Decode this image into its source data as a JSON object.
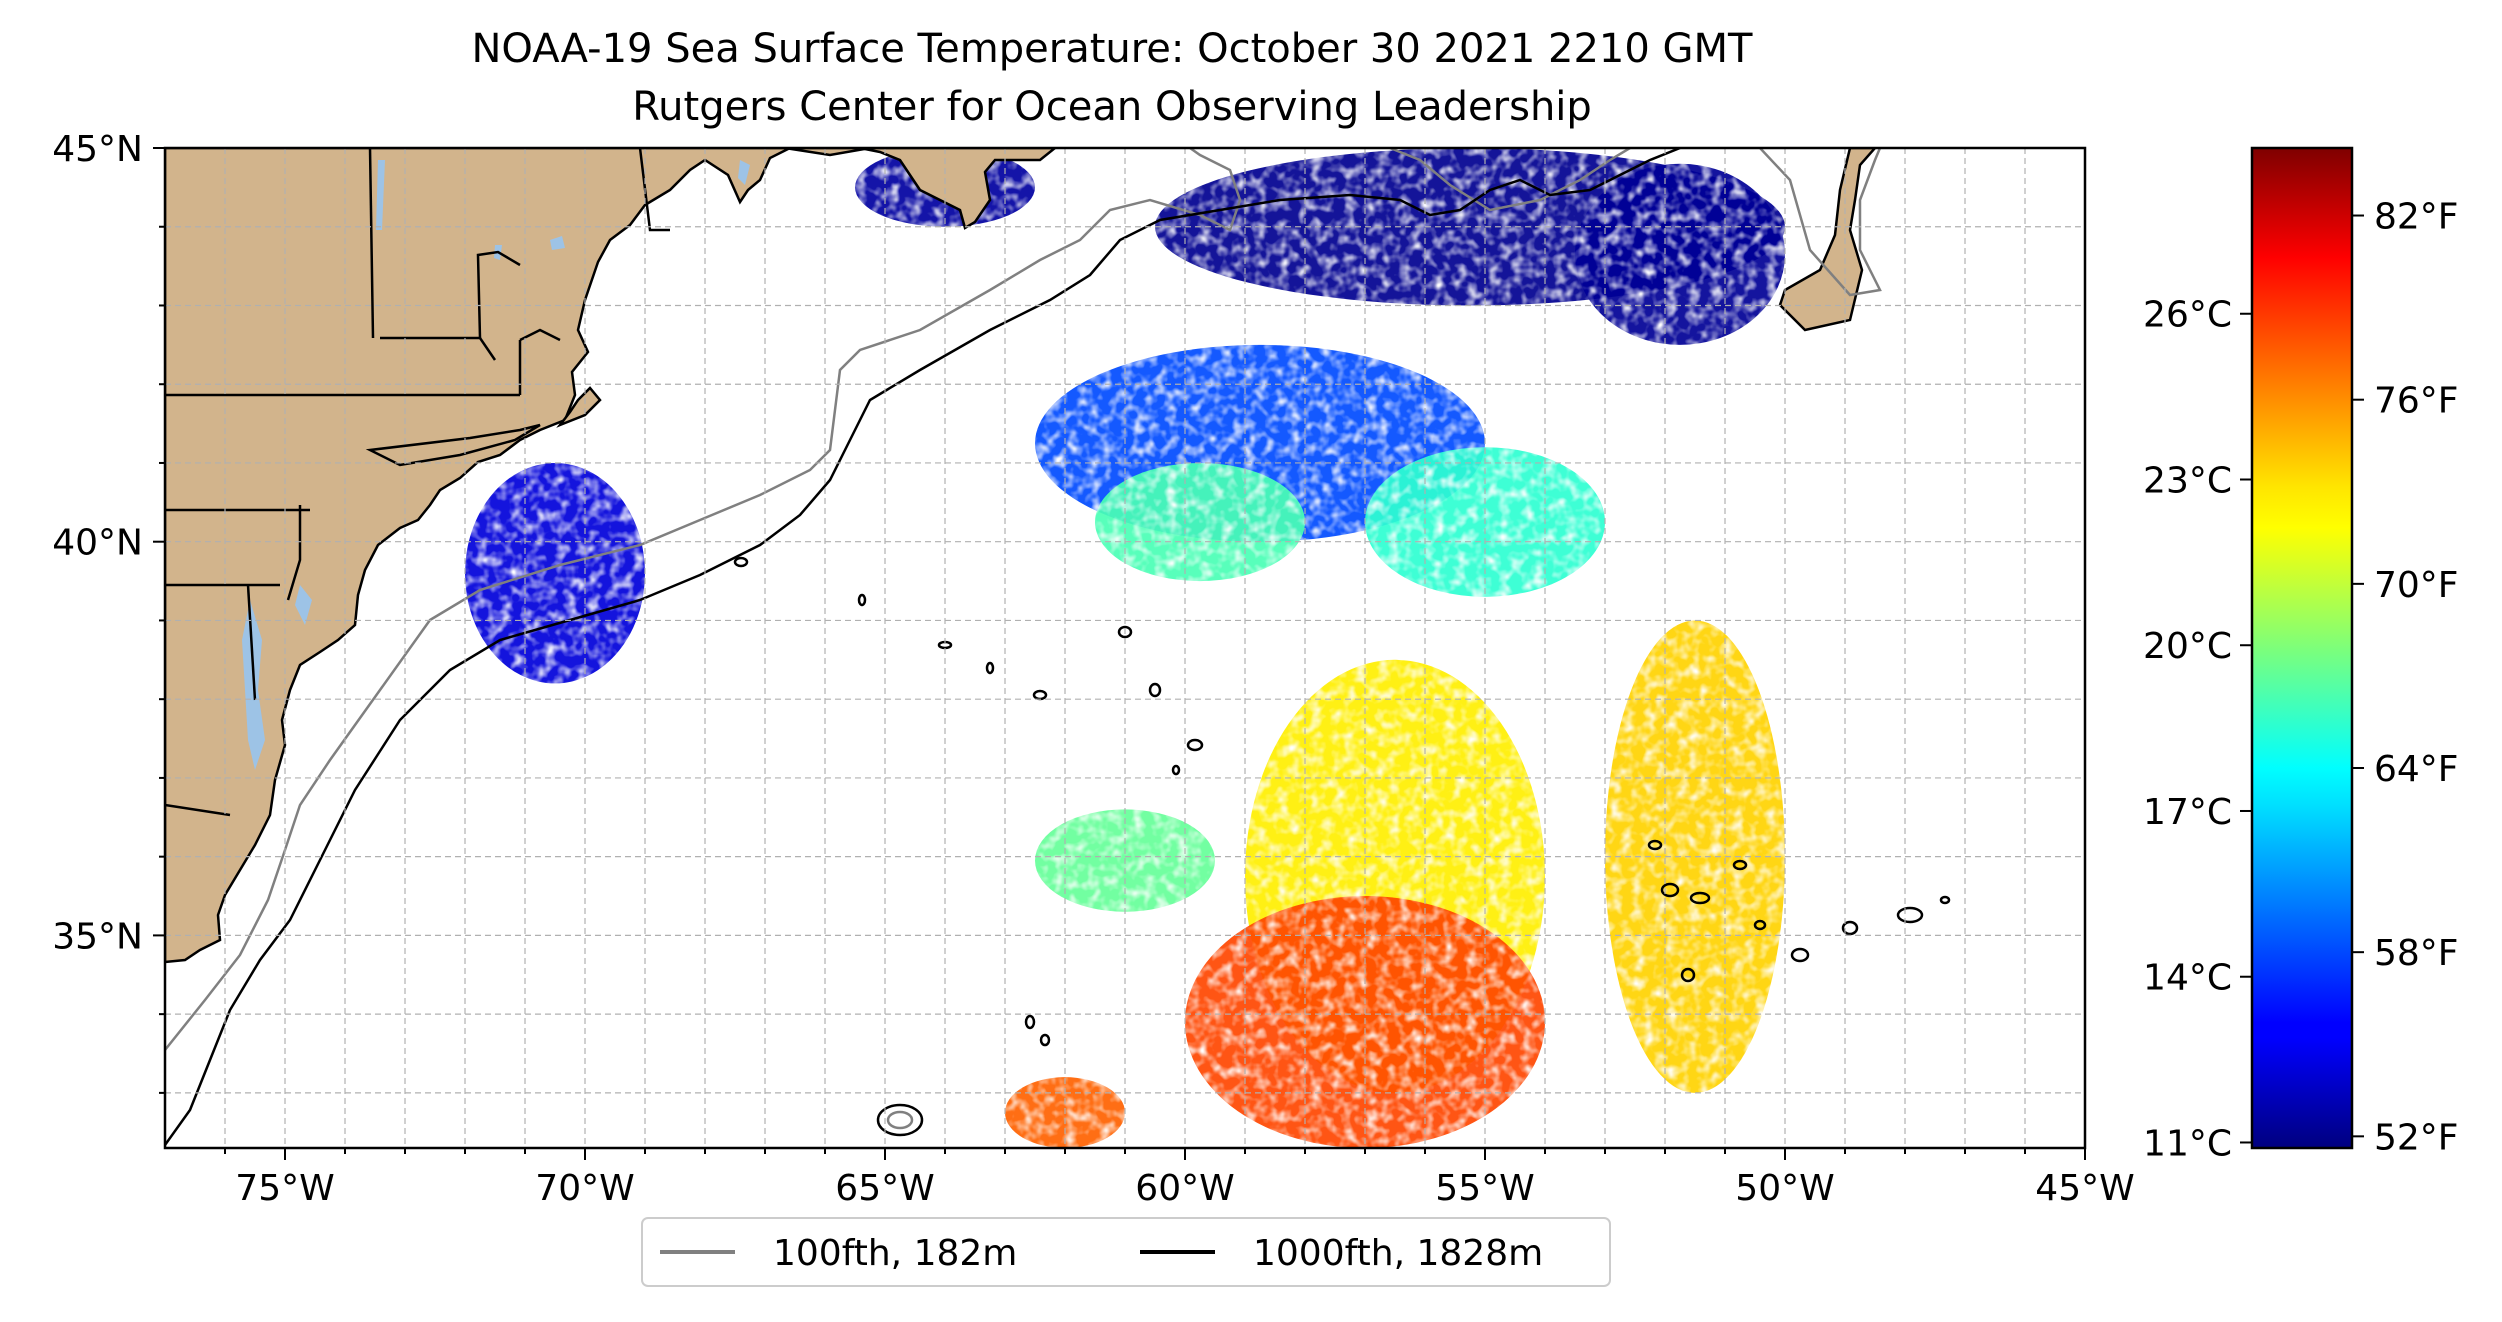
{
  "title": {
    "line1": "NOAA-19 Sea Surface Temperature: October 30 2021 2210 GMT",
    "line2": "Rutgers Center for Ocean Observing Leadership"
  },
  "map": {
    "lon_range": [
      -77,
      -45
    ],
    "lat_range": [
      32.3,
      45
    ],
    "x_ticks": [
      {
        "value": -75,
        "label": "75°W"
      },
      {
        "value": -70,
        "label": "70°W"
      },
      {
        "value": -65,
        "label": "65°W"
      },
      {
        "value": -60,
        "label": "60°W"
      },
      {
        "value": -55,
        "label": "55°W"
      },
      {
        "value": -50,
        "label": "50°W"
      },
      {
        "value": -45,
        "label": "45°W"
      }
    ],
    "y_ticks": [
      {
        "value": 45,
        "label": "45°N"
      },
      {
        "value": 40,
        "label": "40°N"
      },
      {
        "value": 35,
        "label": "35°N"
      }
    ],
    "gridlines": true,
    "colors": {
      "land": "#d2b48c",
      "lakes": "#9dc3e6",
      "ocean": "#ffffff",
      "border": "#000000",
      "grid": "#b0b0b0",
      "isobath_100fth": "#808080",
      "isobath_1000fth": "#000000"
    }
  },
  "legend": {
    "placement": "bottom-center",
    "items": [
      {
        "label": "100fth, 182m",
        "color": "#808080"
      },
      {
        "label": "1000fth, 1828m",
        "color": "#000000"
      }
    ]
  },
  "colorbar": {
    "colormap": "jet",
    "celsius_range": [
      10.9,
      29.0
    ],
    "celsius_ticks": [
      {
        "value": 11,
        "label": "11°C"
      },
      {
        "value": 14,
        "label": "14°C"
      },
      {
        "value": 17,
        "label": "17°C"
      },
      {
        "value": 20,
        "label": "20°C"
      },
      {
        "value": 23,
        "label": "23°C"
      },
      {
        "value": 26,
        "label": "26°C"
      }
    ],
    "fahrenheit_ticks": [
      {
        "value": 52,
        "label": "52°F"
      },
      {
        "value": 58,
        "label": "58°F"
      },
      {
        "value": 64,
        "label": "64°F"
      },
      {
        "value": 70,
        "label": "70°F"
      },
      {
        "value": 76,
        "label": "76°F"
      },
      {
        "value": 82,
        "label": "82°F"
      }
    ]
  },
  "sst_regions": [
    {
      "name": "gulf-of-maine-cold",
      "lon": [
        -60.5,
        -50
      ],
      "lat": [
        43,
        45
      ],
      "temp_c": 11.2
    },
    {
      "name": "bay-of-fundy-cold",
      "lon": [
        -65.5,
        -62.5
      ],
      "lat": [
        44,
        45
      ],
      "temp_c": 11.5
    },
    {
      "name": "grand-banks-cold",
      "lon": [
        -53.5,
        -50
      ],
      "lat": [
        42.5,
        44.8
      ],
      "temp_c": 11.3
    },
    {
      "name": "georges-slope-mixed",
      "lon": [
        -62.5,
        -55
      ],
      "lat": [
        40,
        42.5
      ],
      "temp_c": 14.5
    },
    {
      "name": "slope-warm-patch",
      "lon": [
        -61.5,
        -58
      ],
      "lat": [
        39.5,
        41
      ],
      "temp_c": 19.0
    },
    {
      "name": "eastern-slope-patch",
      "lon": [
        -57,
        -53
      ],
      "lat": [
        39.3,
        41.2
      ],
      "temp_c": 18.5
    },
    {
      "name": "ny-bight-cold",
      "lon": [
        -72,
        -69
      ],
      "lat": [
        38.2,
        41
      ],
      "temp_c": 12.5
    },
    {
      "name": "gulf-stream-east",
      "lon": [
        -53,
        -50
      ],
      "lat": [
        33,
        39
      ],
      "temp_c": 23.0
    },
    {
      "name": "central-warm",
      "lon": [
        -59,
        -54
      ],
      "lat": [
        33,
        38.5
      ],
      "temp_c": 22.5
    },
    {
      "name": "southern-warmest",
      "lon": [
        -60,
        -54
      ],
      "lat": [
        32.3,
        35.5
      ],
      "temp_c": 25.5
    },
    {
      "name": "offshore-green-patch",
      "lon": [
        -62.5,
        -59.5
      ],
      "lat": [
        35.3,
        36.6
      ],
      "temp_c": 19.5
    },
    {
      "name": "sargasso-south",
      "lon": [
        -63,
        -61
      ],
      "lat": [
        32.3,
        33.2
      ],
      "temp_c": 25.0
    }
  ]
}
